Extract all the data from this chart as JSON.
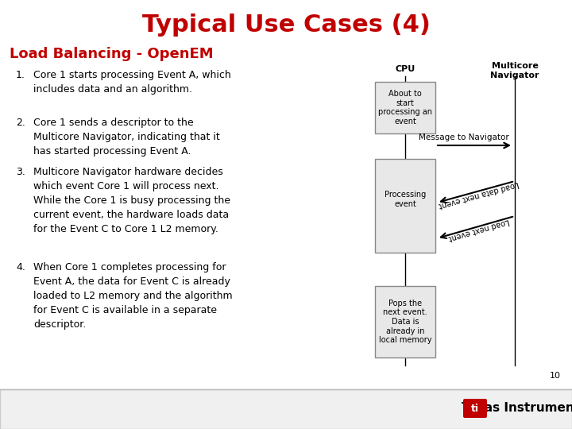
{
  "title": "Typical Use Cases (4)",
  "title_color": "#C00000",
  "subtitle": "Load Balancing - OpenEM",
  "subtitle_color": "#C00000",
  "bg_color": "#FFFFFF",
  "items": [
    "Core 1 starts processing Event A, which\nincludes data and an algorithm.",
    "Core 1 sends a descriptor to the\nMulticore Navigator, indicating that it\nhas started processing Event A.",
    "Multicore Navigator hardware decides\nwhich event Core 1 will process next.\nWhile the Core 1 is busy processing the\ncurrent event, the hardware loads data\nfor the Event C to Core 1 L2 memory.",
    "When Core 1 completes processing for\nEvent A, the data for Event C is already\nloaded to L2 memory and the algorithm\nfor Event C is available in a separate\ndescriptor."
  ],
  "cpu_label": "CPU",
  "nav_label": "Multicore\nNavigator",
  "box1_text": "About to\nstart\nprocessing an\nevent",
  "box2_text": "Processing\nevent",
  "box3_text": "Pops the\nnext event.\nData is\nalready in\nlocal memory",
  "arrow1_label": "Message to Navigator",
  "arrow2_label": "Load data next event",
  "arrow3_label": "Load next event",
  "page_num": "10",
  "ti_red": "#C00000"
}
